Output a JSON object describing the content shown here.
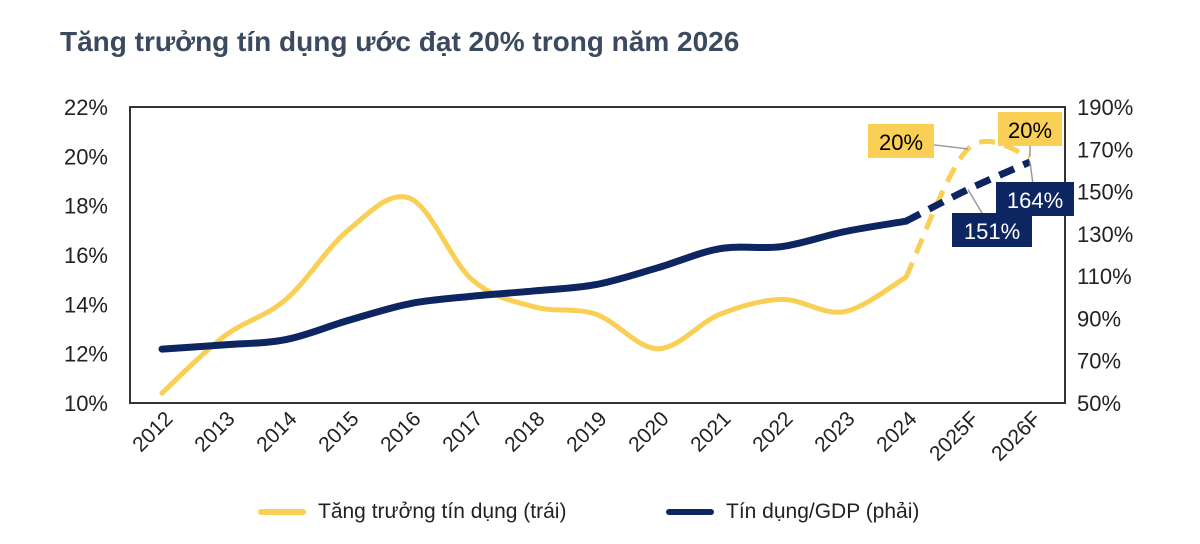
{
  "title": "Tăng trưởng tín dụng ước đạt 20% trong năm 2026",
  "chart_data": {
    "type": "line",
    "title": "Tăng trưởng tín dụng ước đạt 20% trong năm 2026",
    "categories": [
      "2012",
      "2013",
      "2014",
      "2015",
      "2016",
      "2017",
      "2018",
      "2019",
      "2020",
      "2021",
      "2022",
      "2023",
      "2024",
      "2025F",
      "2026F"
    ],
    "left_axis": {
      "min": 10,
      "max": 22,
      "ticks": [
        "10%",
        "12%",
        "14%",
        "16%",
        "18%",
        "20%",
        "22%"
      ]
    },
    "right_axis": {
      "min": 50,
      "max": 190,
      "ticks": [
        "50%",
        "70%",
        "90%",
        "110%",
        "130%",
        "150%",
        "170%",
        "190%"
      ]
    },
    "series": [
      {
        "name": "Tăng trưởng tín dụng (trái)",
        "axis": "left",
        "color": "#f9cf55",
        "values": [
          10.4,
          12.7,
          14.2,
          17.0,
          18.3,
          15.0,
          13.9,
          13.6,
          12.2,
          13.6,
          14.2,
          13.7,
          15.1,
          20.3,
          20.0
        ],
        "forecast_from_index": 12
      },
      {
        "name": "Tín dụng/GDP (phải)",
        "axis": "right",
        "color": "#0d2560",
        "values": [
          75.5,
          77.5,
          80,
          89,
          97,
          100.5,
          103,
          106,
          114,
          123,
          124,
          131,
          136,
          151,
          164
        ],
        "forecast_from_index": 12
      }
    ],
    "annotations": [
      {
        "text": "20%",
        "series": 0,
        "index": 13,
        "bg": "#f9cf55"
      },
      {
        "text": "20%",
        "series": 0,
        "index": 14,
        "bg": "#f9cf55"
      },
      {
        "text": "151%",
        "series": 1,
        "index": 13,
        "bg": "#0d2560"
      },
      {
        "text": "164%",
        "series": 1,
        "index": 14,
        "bg": "#0d2560"
      }
    ],
    "grid": false,
    "legend": "bottom"
  }
}
